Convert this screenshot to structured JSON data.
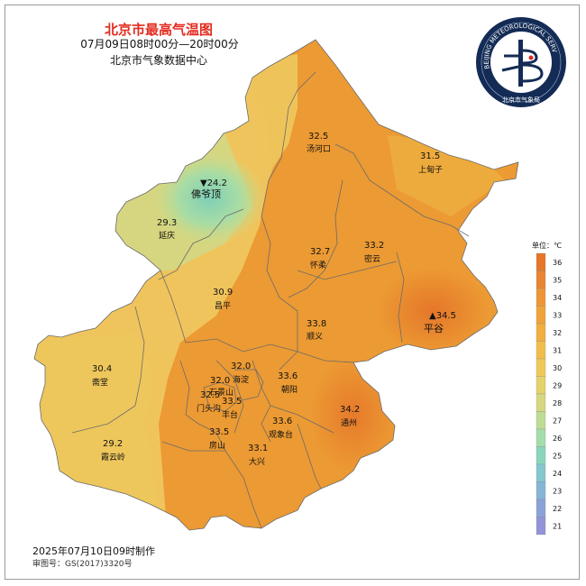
{
  "title": "北京市最高气温图",
  "subtitle": "07月09日08时00分—20时00分",
  "organization": "北京市气象数据中心",
  "made_time": "2025年07月10日09时制作",
  "approval_number": "审图号：GS(2017)3320号",
  "logo": {
    "ring_text": "BEIJING METEOROLOGICAL SERVICE",
    "bottom_text": "北京市气象局",
    "icon": "beijing-meteorological-service-logo"
  },
  "legend": {
    "unit_label": "单位：℃",
    "ticks": [
      "36",
      "35",
      "34",
      "33",
      "32",
      "31",
      "30",
      "29",
      "28",
      "27",
      "26",
      "25",
      "24",
      "23",
      "22",
      "21"
    ],
    "colors": [
      "#e5762a",
      "#e98532",
      "#ee9635",
      "#f0a339",
      "#f2af3e",
      "#f2bd4b",
      "#eec959",
      "#e4d36a",
      "#d6d77f",
      "#bfdc95",
      "#a5dcac",
      "#8bd5bf",
      "#84c8cf",
      "#86b5d6",
      "#8ba2d8",
      "#9393d9"
    ]
  },
  "stations": [
    {
      "name": "汤河口",
      "value": "32.5"
    },
    {
      "name": "上甸子",
      "value": "31.5"
    },
    {
      "name": "佛爷顶",
      "value": "▼24.2"
    },
    {
      "name": "延庆",
      "value": "29.3"
    },
    {
      "name": "怀柔",
      "value": "32.7"
    },
    {
      "name": "密云",
      "value": "33.2"
    },
    {
      "name": "昌平",
      "value": "30.9"
    },
    {
      "name": "平谷",
      "value": "▲34.5"
    },
    {
      "name": "顺义",
      "value": "33.8"
    },
    {
      "name": "斋堂",
      "value": "30.4"
    },
    {
      "name": "海淀",
      "value": "32.0"
    },
    {
      "name": "朝阳",
      "value": "33.6"
    },
    {
      "name": "石景山",
      "value": "32.0"
    },
    {
      "name": "门头沟",
      "value": "32.5"
    },
    {
      "name": "丰台",
      "value": "33.5"
    },
    {
      "name": "通州",
      "value": "34.2"
    },
    {
      "name": "观象台",
      "value": "33.6"
    },
    {
      "name": "房山",
      "value": "33.5"
    },
    {
      "name": "大兴",
      "value": "33.1"
    },
    {
      "name": "霞云岭",
      "value": "29.2"
    }
  ]
}
